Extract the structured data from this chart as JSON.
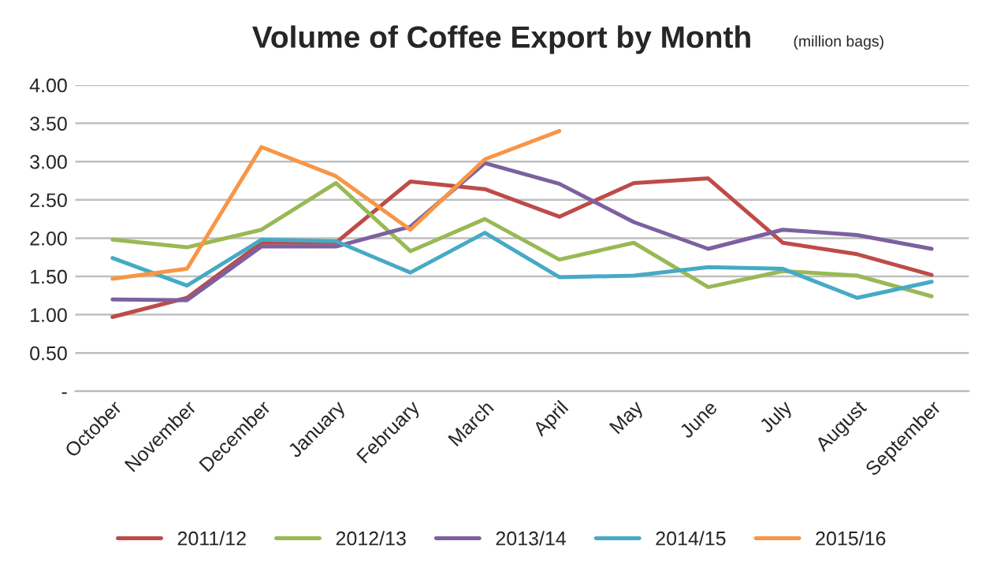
{
  "chart_data": {
    "type": "line",
    "title": "Volume of Coffee Export by Month",
    "subtitle": "(million bags)",
    "categories": [
      "October",
      "November",
      "December",
      "January",
      "February",
      "March",
      "April",
      "May",
      "June",
      "July",
      "August",
      "September"
    ],
    "series": [
      {
        "name": "2011/12",
        "color": "#be4b48",
        "values": [
          0.97,
          1.22,
          1.94,
          1.94,
          2.74,
          2.64,
          2.28,
          2.72,
          2.78,
          1.94,
          1.79,
          1.52
        ]
      },
      {
        "name": "2012/13",
        "color": "#98b954",
        "values": [
          1.98,
          1.88,
          2.11,
          2.72,
          1.83,
          2.25,
          1.72,
          1.94,
          1.36,
          1.57,
          1.51,
          1.24
        ]
      },
      {
        "name": "2013/14",
        "color": "#7d60a0",
        "values": [
          1.2,
          1.19,
          1.89,
          1.89,
          2.15,
          2.98,
          2.71,
          2.21,
          1.86,
          2.11,
          2.04,
          1.86
        ]
      },
      {
        "name": "2014/15",
        "color": "#46aac5",
        "values": [
          1.74,
          1.38,
          1.98,
          1.96,
          1.55,
          2.07,
          1.49,
          1.51,
          1.62,
          1.6,
          1.22,
          1.43
        ]
      },
      {
        "name": "2015/16",
        "color": "#f79646",
        "values": [
          1.47,
          1.6,
          3.19,
          2.81,
          2.11,
          3.03,
          3.4,
          null,
          null,
          null,
          null,
          null
        ]
      }
    ],
    "ylim": [
      0,
      4
    ],
    "yticks": [
      {
        "value": 0,
        "label": "-"
      },
      {
        "value": 0.5,
        "label": "0.50"
      },
      {
        "value": 1,
        "label": "1.00"
      },
      {
        "value": 1.5,
        "label": "1.50"
      },
      {
        "value": 2,
        "label": "2.00"
      },
      {
        "value": 2.5,
        "label": "2.50"
      },
      {
        "value": 3,
        "label": "3.00"
      },
      {
        "value": 3.5,
        "label": "3.50"
      },
      {
        "value": 4,
        "label": "4.00"
      }
    ],
    "grid": "y",
    "legend": "bottom",
    "marker": "none",
    "line_style": "solid"
  }
}
